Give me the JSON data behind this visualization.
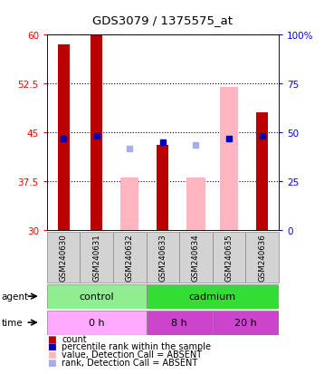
{
  "title": "GDS3079 / 1375575_at",
  "samples": [
    "GSM240630",
    "GSM240631",
    "GSM240632",
    "GSM240633",
    "GSM240634",
    "GSM240635",
    "GSM240636"
  ],
  "count_values": [
    58.5,
    60.0,
    null,
    43.0,
    null,
    null,
    48.0
  ],
  "count_absent_values": [
    null,
    null,
    null,
    null,
    null,
    52.0,
    null
  ],
  "rank_values": [
    44.0,
    44.5,
    null,
    43.5,
    null,
    44.0,
    44.5
  ],
  "rank_absent_values": [
    null,
    null,
    42.5,
    null,
    43.0,
    null,
    null
  ],
  "value_absent_bars": [
    null,
    null,
    [
      30.0,
      38.0
    ],
    null,
    [
      30.0,
      38.0
    ],
    [
      30.0,
      52.0
    ],
    null
  ],
  "ylim": [
    30,
    60
  ],
  "y2lim": [
    0,
    100
  ],
  "yticks": [
    30,
    37.5,
    45,
    52.5,
    60
  ],
  "ytick_labels": [
    "30",
    "37.5",
    "45",
    "52.5",
    "60"
  ],
  "y2ticks": [
    0,
    25,
    50,
    75,
    100
  ],
  "y2tick_labels": [
    "0",
    "25",
    "50",
    "75",
    "100%"
  ],
  "agent_groups": [
    {
      "label": "control",
      "start": 0,
      "end": 3,
      "color": "#90EE90"
    },
    {
      "label": "cadmium",
      "start": 3,
      "end": 7,
      "color": "#33DD33"
    }
  ],
  "time_groups": [
    {
      "label": "0 h",
      "start": 0,
      "end": 3,
      "color": "#FFAAFF"
    },
    {
      "label": "8 h",
      "start": 3,
      "end": 5,
      "color": "#CC44CC"
    },
    {
      "label": "20 h",
      "start": 5,
      "end": 7,
      "color": "#CC44CC"
    }
  ],
  "bar_width": 0.35,
  "pink_bar_width": 0.55,
  "count_color": "#BB0000",
  "count_absent_color": "#FFB6C1",
  "rank_color": "#0000BB",
  "rank_absent_color": "#AAAAEE",
  "bg_color": "#FFFFFF",
  "plot_bg": "#FFFFFF",
  "legend_items": [
    {
      "label": "count",
      "color": "#BB0000"
    },
    {
      "label": "percentile rank within the sample",
      "color": "#0000BB"
    },
    {
      "label": "value, Detection Call = ABSENT",
      "color": "#FFB6C1"
    },
    {
      "label": "rank, Detection Call = ABSENT",
      "color": "#AAAAEE"
    }
  ]
}
